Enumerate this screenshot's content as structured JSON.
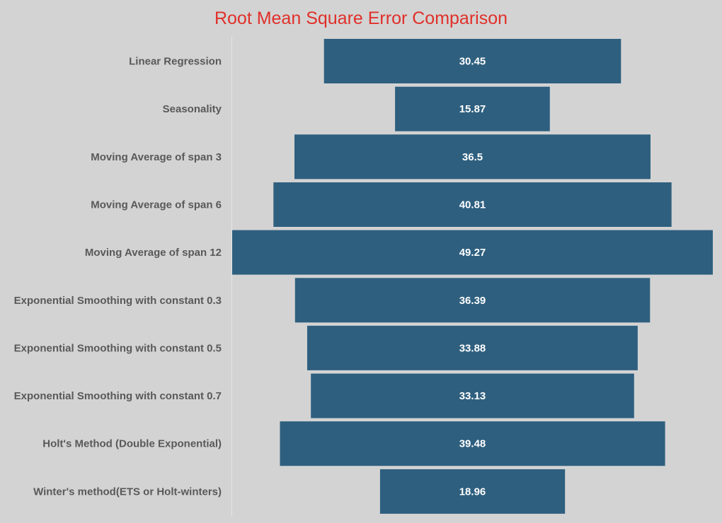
{
  "chart_data": {
    "type": "bar",
    "orientation": "horizontal-centered",
    "title": "Root Mean Square Error Comparison",
    "categories": [
      "Linear Regression",
      "Seasonality",
      "Moving Average of span 3",
      "Moving Average of span 6",
      "Moving Average of span 12",
      "Exponential Smoothing with constant 0.3",
      "Exponential Smoothing with constant 0.5",
      "Exponential Smoothing with constant 0.7",
      "Holt's Method (Double Exponential)",
      "Winter's method(ETS or Holt-winters)"
    ],
    "values": [
      30.45,
      15.87,
      36.5,
      40.81,
      49.27,
      36.39,
      33.88,
      33.13,
      39.48,
      18.96
    ],
    "value_labels": [
      "30.45",
      "15.87",
      "36.5",
      "40.81",
      "49.27",
      "36.39",
      "33.88",
      "33.13",
      "39.48",
      "18.96"
    ],
    "bar_color": "#2e5f7f",
    "title_color": "#e0302a",
    "label_color": "#595959",
    "background_color": "#d3d3d3",
    "grid": false,
    "legend": "none"
  }
}
